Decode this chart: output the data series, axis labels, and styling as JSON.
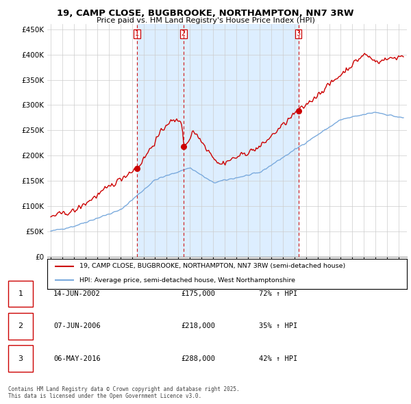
{
  "title": "19, CAMP CLOSE, BUGBROOKE, NORTHAMPTON, NN7 3RW",
  "subtitle": "Price paid vs. HM Land Registry's House Price Index (HPI)",
  "ylim": [
    0,
    460000
  ],
  "yticks": [
    0,
    50000,
    100000,
    150000,
    200000,
    250000,
    300000,
    350000,
    400000,
    450000
  ],
  "ytick_labels": [
    "£0",
    "£50K",
    "£100K",
    "£150K",
    "£200K",
    "£250K",
    "£300K",
    "£350K",
    "£400K",
    "£450K"
  ],
  "sale_color": "#cc0000",
  "hpi_color": "#7aaadd",
  "sale_transactions": [
    {
      "date_num": 2002.44,
      "price": 175000,
      "label": "1"
    },
    {
      "date_num": 2006.43,
      "price": 218000,
      "label": "2"
    },
    {
      "date_num": 2016.35,
      "price": 288000,
      "label": "3"
    }
  ],
  "vline_color": "#cc0000",
  "shade_color": "#ddeeff",
  "legend_entries": [
    "19, CAMP CLOSE, BUGBROOKE, NORTHAMPTON, NN7 3RW (semi-detached house)",
    "HPI: Average price, semi-detached house, West Northamptonshire"
  ],
  "table_rows": [
    {
      "num": "1",
      "date": "14-JUN-2002",
      "price": "£175,000",
      "hpi": "72% ↑ HPI"
    },
    {
      "num": "2",
      "date": "07-JUN-2006",
      "price": "£218,000",
      "hpi": "35% ↑ HPI"
    },
    {
      "num": "3",
      "date": "06-MAY-2016",
      "price": "£288,000",
      "hpi": "42% ↑ HPI"
    }
  ],
  "footnote": "Contains HM Land Registry data © Crown copyright and database right 2025.\nThis data is licensed under the Open Government Licence v3.0.",
  "background_color": "#ffffff",
  "grid_color": "#cccccc",
  "xlim_start": 1994.7,
  "xlim_end": 2025.7
}
